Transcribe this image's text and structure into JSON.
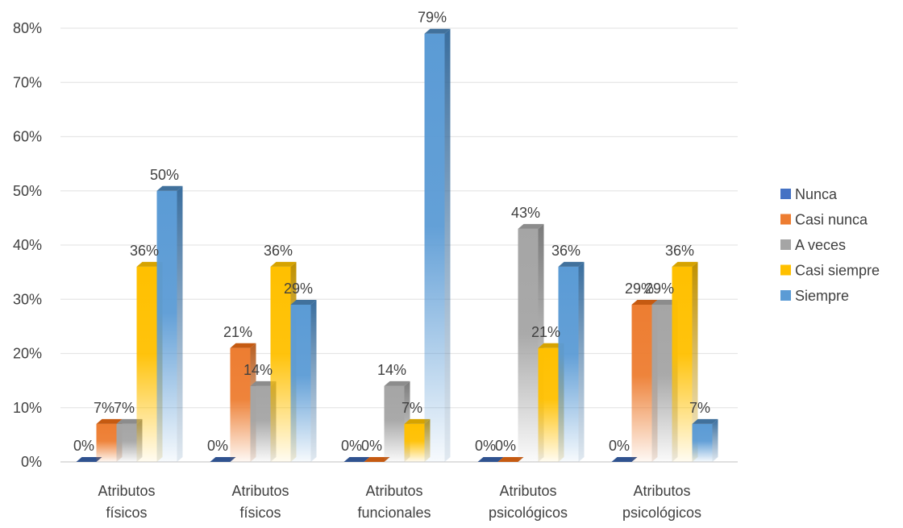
{
  "chart_data": {
    "type": "bar",
    "categories": [
      [
        "Atributos",
        "físicos"
      ],
      [
        "Atributos",
        "físicos"
      ],
      [
        "Atributos",
        "funcionales"
      ],
      [
        "Atributos",
        "psicológicos"
      ],
      [
        "Atributos",
        "psicológicos"
      ]
    ],
    "series": [
      {
        "name": "Nunca",
        "values": [
          0,
          0,
          0,
          0,
          0
        ],
        "labels": [
          "0%",
          "0%",
          "0%",
          "0%",
          "0%"
        ],
        "color": "#4472C4",
        "side": "#2F528F",
        "top": "#2F528F"
      },
      {
        "name": "Casi nunca",
        "values": [
          7,
          21,
          0,
          0,
          29
        ],
        "labels": [
          "7%",
          "21%",
          "0%",
          "0%",
          "29%"
        ],
        "color": "#ED7D31",
        "side": "#B85F22",
        "top": "#C55A11"
      },
      {
        "name": "A veces",
        "values": [
          7,
          14,
          14,
          43,
          29
        ],
        "labels": [
          "7%",
          "14%",
          "14%",
          "43%",
          "29%"
        ],
        "color": "#A5A5A5",
        "side": "#7B7B7B",
        "top": "#8C8C8C"
      },
      {
        "name": "Casi siempre",
        "values": [
          36,
          36,
          7,
          21,
          36
        ],
        "labels": [
          "36%",
          "36%",
          "7%",
          "21%",
          "36%"
        ],
        "color": "#FFC000",
        "side": "#BF9000",
        "top": "#D6A300"
      },
      {
        "name": "Siempre",
        "values": [
          50,
          29,
          79,
          36,
          7
        ],
        "labels": [
          "50%",
          "29%",
          "79%",
          "36%",
          "7%"
        ],
        "color": "#5B9BD5",
        "side": "#3A6E9E",
        "top": "#41719C"
      }
    ],
    "y_ticks": [
      "0%",
      "10%",
      "20%",
      "30%",
      "40%",
      "50%",
      "60%",
      "70%",
      "80%"
    ],
    "ylim": [
      0,
      80
    ],
    "grid": true,
    "legend_position": "right"
  }
}
